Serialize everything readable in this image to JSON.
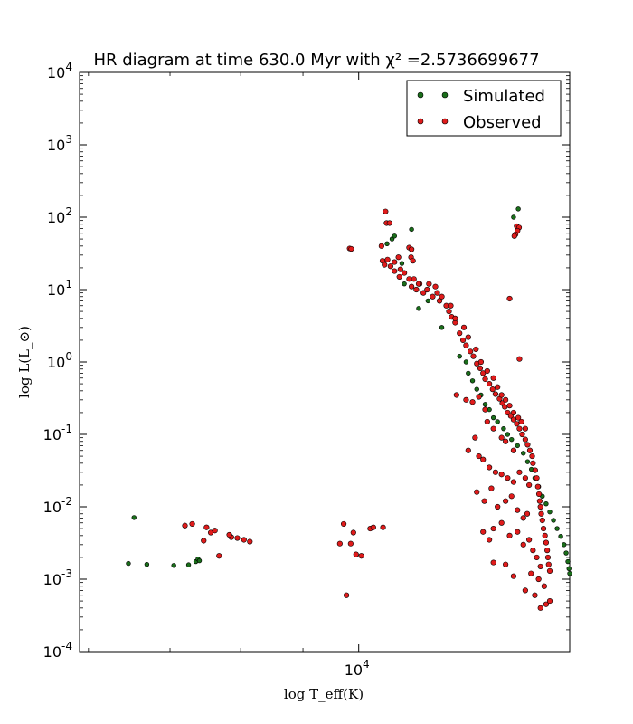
{
  "chart_data": {
    "type": "scatter",
    "title": "HR diagram at time 630.0 Myr with χ² =2.5736699677",
    "xlabel": "log T_eff(K)",
    "ylabel": "log L(L_⊙)",
    "x_scale": "log",
    "y_scale": "log",
    "xlim": [
      5900,
      14900
    ],
    "ylim": [
      0.0001,
      10000
    ],
    "x_tick_labels": [
      {
        "value": 10000,
        "mantissa": "10",
        "exp": "4"
      }
    ],
    "y_tick_labels": [
      {
        "value": 0.0001,
        "mantissa": "10",
        "exp": "-4"
      },
      {
        "value": 0.001,
        "mantissa": "10",
        "exp": "-3"
      },
      {
        "value": 0.01,
        "mantissa": "10",
        "exp": "-2"
      },
      {
        "value": 0.1,
        "mantissa": "10",
        "exp": "-1"
      },
      {
        "value": 1,
        "mantissa": "10",
        "exp": "0"
      },
      {
        "value": 10,
        "mantissa": "10",
        "exp": "1"
      },
      {
        "value": 100,
        "mantissa": "10",
        "exp": "2"
      },
      {
        "value": 1000,
        "mantissa": "10",
        "exp": "3"
      },
      {
        "value": 10000,
        "mantissa": "10",
        "exp": "4"
      }
    ],
    "legend_position": "top-right",
    "series": [
      {
        "name": "Simulated",
        "color": "#1a6e1a",
        "points": [
          [
            6540,
            0.0071
          ],
          [
            6470,
            0.00165
          ],
          [
            6700,
            0.0016
          ],
          [
            7050,
            0.00155
          ],
          [
            7250,
            0.00158
          ],
          [
            7350,
            0.00175
          ],
          [
            7380,
            0.0019
          ],
          [
            7400,
            0.0018
          ],
          [
            10550,
            43
          ],
          [
            10650,
            50
          ],
          [
            10700,
            55
          ],
          [
            10850,
            23
          ],
          [
            10900,
            12
          ],
          [
            11050,
            68
          ],
          [
            11200,
            5.5
          ],
          [
            11400,
            7
          ],
          [
            11700,
            3
          ],
          [
            12100,
            1.2
          ],
          [
            12300,
            0.7
          ],
          [
            12500,
            0.42
          ],
          [
            12700,
            0.26
          ],
          [
            12900,
            0.17
          ],
          [
            13150,
            0.12
          ],
          [
            13350,
            0.085
          ],
          [
            13400,
            100
          ],
          [
            13520,
            130
          ],
          [
            13500,
            0.07
          ],
          [
            13650,
            0.055
          ],
          [
            13760,
            0.042
          ],
          [
            13860,
            0.033
          ],
          [
            13950,
            0.025
          ],
          [
            14050,
            0.019
          ],
          [
            14150,
            0.014
          ],
          [
            14250,
            0.011
          ],
          [
            14350,
            0.0085
          ],
          [
            14450,
            0.0065
          ],
          [
            14550,
            0.005
          ],
          [
            14650,
            0.0039
          ],
          [
            14740,
            0.003
          ],
          [
            14800,
            0.0023
          ],
          [
            14850,
            0.00175
          ],
          [
            14880,
            0.0014
          ],
          [
            14900,
            0.0012
          ],
          [
            14920,
            0.00105
          ],
          [
            14940,
            0.001
          ],
          [
            12250,
            1.0
          ],
          [
            12400,
            0.55
          ],
          [
            12600,
            0.35
          ],
          [
            12800,
            0.22
          ],
          [
            13000,
            0.15
          ],
          [
            13250,
            0.1
          ]
        ]
      },
      {
        "name": "Observed",
        "color": "#e01b1b",
        "points": [
          [
            7300,
            0.0058
          ],
          [
            7200,
            0.0055
          ],
          [
            7500,
            0.0052
          ],
          [
            7560,
            0.0044
          ],
          [
            7620,
            0.0047
          ],
          [
            7460,
            0.0034
          ],
          [
            7680,
            0.0021
          ],
          [
            7860,
            0.0038
          ],
          [
            7950,
            0.0037
          ],
          [
            7830,
            0.0041
          ],
          [
            8050,
            0.0035
          ],
          [
            8140,
            0.0033
          ],
          [
            9830,
            37
          ],
          [
            9860,
            36.5
          ],
          [
            10520,
            120
          ],
          [
            10540,
            83
          ],
          [
            10600,
            83
          ],
          [
            10440,
            40
          ],
          [
            10460,
            25
          ],
          [
            10500,
            22
          ],
          [
            10560,
            26
          ],
          [
            10620,
            21
          ],
          [
            10700,
            24
          ],
          [
            10780,
            28
          ],
          [
            10820,
            19
          ],
          [
            10900,
            17
          ],
          [
            11000,
            14
          ],
          [
            11050,
            11
          ],
          [
            11150,
            10
          ],
          [
            11220,
            12
          ],
          [
            11300,
            9
          ],
          [
            11420,
            12
          ],
          [
            11500,
            8
          ],
          [
            11560,
            11
          ],
          [
            11650,
            7
          ],
          [
            11700,
            8
          ],
          [
            11800,
            6
          ],
          [
            11860,
            5
          ],
          [
            11920,
            4.2
          ],
          [
            12000,
            3.5
          ],
          [
            12100,
            2.5
          ],
          [
            12180,
            2.0
          ],
          [
            12250,
            1.7
          ],
          [
            12350,
            1.4
          ],
          [
            12420,
            1.2
          ],
          [
            12500,
            0.95
          ],
          [
            12580,
            0.82
          ],
          [
            12650,
            0.7
          ],
          [
            12700,
            0.58
          ],
          [
            12800,
            0.5
          ],
          [
            12880,
            0.42
          ],
          [
            12950,
            0.36
          ],
          [
            13050,
            0.31
          ],
          [
            13120,
            0.27
          ],
          [
            13180,
            0.24
          ],
          [
            13250,
            0.2
          ],
          [
            13330,
            0.18
          ],
          [
            13400,
            0.16
          ],
          [
            13480,
            0.14
          ],
          [
            13550,
            0.12
          ],
          [
            13620,
            0.1
          ],
          [
            13700,
            0.085
          ],
          [
            13760,
            0.072
          ],
          [
            13820,
            0.06
          ],
          [
            13880,
            0.05
          ],
          [
            11000,
            38
          ],
          [
            11050,
            36
          ],
          [
            11040,
            28
          ],
          [
            11080,
            25
          ],
          [
            10700,
            18
          ],
          [
            10800,
            15
          ],
          [
            11100,
            14
          ],
          [
            11200,
            12
          ],
          [
            11380,
            10
          ],
          [
            11600,
            9
          ],
          [
            11900,
            6
          ],
          [
            12000,
            4
          ],
          [
            12200,
            3
          ],
          [
            12300,
            2.2
          ],
          [
            12480,
            1.5
          ],
          [
            12600,
            1.0
          ],
          [
            12750,
            0.75
          ],
          [
            12900,
            0.6
          ],
          [
            13000,
            0.45
          ],
          [
            13100,
            0.35
          ],
          [
            13200,
            0.3
          ],
          [
            13300,
            0.25
          ],
          [
            13400,
            0.2
          ],
          [
            13520,
            0.17
          ],
          [
            13600,
            0.15
          ],
          [
            13700,
            0.12
          ],
          [
            13480,
            75
          ],
          [
            13540,
            72
          ],
          [
            13500,
            65
          ],
          [
            13450,
            58
          ],
          [
            13420,
            55
          ],
          [
            13300,
            7.5
          ],
          [
            13550,
            1.1
          ],
          [
            12030,
            0.35
          ],
          [
            12250,
            0.3
          ],
          [
            12400,
            0.28
          ],
          [
            12550,
            0.33
          ],
          [
            12700,
            0.22
          ],
          [
            12750,
            0.15
          ],
          [
            12900,
            0.12
          ],
          [
            13100,
            0.09
          ],
          [
            13200,
            0.08
          ],
          [
            13400,
            0.06
          ],
          [
            12300,
            0.06
          ],
          [
            12460,
            0.09
          ],
          [
            12550,
            0.05
          ],
          [
            12650,
            0.045
          ],
          [
            12800,
            0.035
          ],
          [
            12950,
            0.03
          ],
          [
            13100,
            0.028
          ],
          [
            13250,
            0.025
          ],
          [
            13400,
            0.022
          ],
          [
            13550,
            0.03
          ],
          [
            13700,
            0.025
          ],
          [
            13800,
            0.02
          ],
          [
            12500,
            0.016
          ],
          [
            12680,
            0.012
          ],
          [
            12850,
            0.018
          ],
          [
            13000,
            0.01
          ],
          [
            13200,
            0.012
          ],
          [
            13350,
            0.014
          ],
          [
            13500,
            0.009
          ],
          [
            13650,
            0.007
          ],
          [
            13750,
            0.008
          ],
          [
            12900,
            0.005
          ],
          [
            13100,
            0.006
          ],
          [
            13300,
            0.004
          ],
          [
            13500,
            0.0045
          ],
          [
            13650,
            0.003
          ],
          [
            13800,
            0.0035
          ],
          [
            13900,
            0.0025
          ],
          [
            14000,
            0.002
          ],
          [
            14100,
            0.0015
          ],
          [
            13850,
            0.0012
          ],
          [
            14050,
            0.001
          ],
          [
            14200,
            0.0008
          ],
          [
            13950,
            0.0006
          ],
          [
            14100,
            0.0004
          ],
          [
            14250,
            0.00045
          ],
          [
            14350,
            0.0005
          ],
          [
            13700,
            0.0007
          ],
          [
            12900,
            0.0017
          ],
          [
            13200,
            0.0016
          ],
          [
            13400,
            0.0011
          ],
          [
            12650,
            0.0045
          ],
          [
            12800,
            0.0035
          ],
          [
            13900,
            0.04
          ],
          [
            13960,
            0.032
          ],
          [
            14000,
            0.025
          ],
          [
            14030,
            0.019
          ],
          [
            14060,
            0.015
          ],
          [
            14080,
            0.012
          ],
          [
            14100,
            0.01
          ],
          [
            14120,
            0.008
          ],
          [
            14150,
            0.0065
          ],
          [
            14180,
            0.005
          ],
          [
            14220,
            0.004
          ],
          [
            14250,
            0.0032
          ],
          [
            14280,
            0.0025
          ],
          [
            14300,
            0.002
          ],
          [
            14320,
            0.0016
          ],
          [
            14350,
            0.0013
          ],
          [
            9650,
            0.0031
          ],
          [
            9720,
            0.0058
          ],
          [
            9850,
            0.0031
          ],
          [
            9900,
            0.0044
          ],
          [
            9950,
            0.0022
          ],
          [
            10050,
            0.0021
          ],
          [
            9770,
            0.0006
          ],
          [
            10220,
            0.005
          ],
          [
            10280,
            0.0052
          ],
          [
            10470,
            0.0052
          ]
        ]
      }
    ]
  }
}
